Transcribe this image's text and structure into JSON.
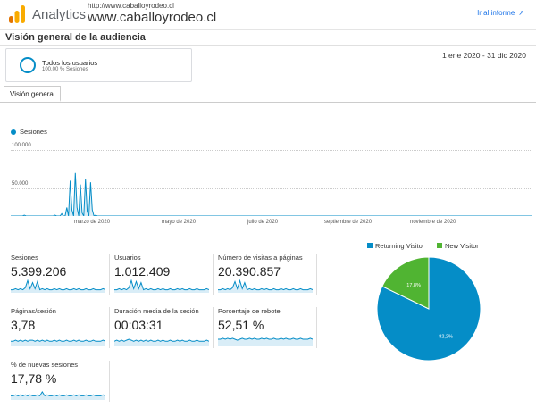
{
  "header": {
    "app_name": "Analytics",
    "property_url": "http://www.caballoyrodeo.cl",
    "property_name": "www.caballoyrodeo.cl",
    "report_link": "Ir al informe",
    "report_link_icon": "external-link-icon"
  },
  "page": {
    "title": "Visión general de la audiencia",
    "date_range": "1 ene 2020 - 31 dic 2020"
  },
  "segment": {
    "name": "Todos los usuarios",
    "percent": "100,00 % Sesiones",
    "color": "#058dc7"
  },
  "tabs": [
    {
      "label": "Visión general",
      "active": true
    }
  ],
  "chart_data": [
    {
      "type": "line",
      "title": "Sesiones",
      "series": [
        {
          "name": "Sesiones",
          "color": "#058dc7",
          "values": [
            7000,
            9000,
            11000,
            13000,
            8000,
            12000,
            10000,
            9000,
            15000,
            11000,
            8000,
            13000,
            10000,
            9000,
            12000,
            10000,
            8000,
            11000,
            9000,
            10000,
            13000,
            9000,
            11000,
            10000,
            12000,
            9000,
            15000,
            10000,
            14000,
            12000,
            17000,
            11000,
            9000,
            25000,
            14000,
            60000,
            22000,
            12000,
            70000,
            25000,
            13000,
            55000,
            18000,
            12000,
            62000,
            20000,
            14000,
            58000,
            22000,
            12000,
            15000,
            11000,
            9000,
            12000,
            10000,
            8000,
            13000,
            9000,
            11000,
            8000,
            12000,
            10000,
            7000,
            9000,
            11000,
            8000,
            10000,
            12000,
            8000,
            9000,
            11000,
            7000,
            10000,
            8000,
            12000,
            9000,
            7000,
            11000,
            8000,
            10000,
            9000,
            12000,
            7000,
            10000,
            8000,
            11000,
            9000,
            13000,
            8000,
            10000,
            12000,
            9000,
            8000,
            11000,
            10000,
            14000,
            9000,
            8000,
            12000,
            10000,
            9000,
            11000,
            7000,
            10000,
            12000,
            8000,
            9000,
            11000,
            10000,
            7000,
            13000,
            9000,
            10000,
            8000,
            12000,
            9000,
            11000,
            10000,
            8000,
            12000,
            9000,
            10000,
            8000,
            11000,
            13000,
            9000,
            10000,
            8000,
            12000,
            9000,
            7000,
            11000,
            10000,
            12000,
            8000,
            9000,
            11000,
            13000,
            8000,
            10000,
            9000,
            12000,
            10000,
            8000,
            11000,
            9000,
            12000,
            10000,
            8000,
            13000,
            9000,
            11000,
            10000,
            12000,
            8000,
            10000,
            11000,
            9000,
            14000,
            10000,
            8000,
            12000,
            9000,
            10000,
            11000,
            8000,
            12000,
            9000,
            10000,
            13000,
            9000,
            11000,
            8000,
            12000,
            10000,
            9000,
            11000,
            8000,
            10000,
            12000,
            9000,
            14000,
            10000,
            8000,
            11000,
            9000,
            12000,
            10000,
            8000,
            13000,
            9000,
            11000,
            10000,
            12000,
            8000,
            9000,
            11000,
            10000,
            8000,
            12000,
            9000,
            10000,
            11000,
            8000,
            12000,
            9000,
            7000,
            11000,
            10000,
            8000,
            12000,
            9000,
            10000,
            8000,
            11000,
            9000,
            12000,
            10000,
            8000,
            11000,
            9000,
            10000,
            8000,
            12000,
            9000,
            7000,
            10000,
            8000,
            11000,
            9000,
            10000,
            8000,
            12000,
            9000,
            7000,
            11000,
            8000,
            10000,
            9000,
            11000,
            8000,
            10000,
            7000,
            9000,
            10000,
            8000,
            11000,
            9000,
            7000,
            10000,
            8000,
            9000,
            11000,
            7000,
            10000,
            8000,
            9000,
            10000,
            7000,
            8000,
            11000,
            9000,
            7000,
            10000,
            8000,
            9000,
            7000,
            10000,
            8000,
            9000,
            7000,
            8000,
            10000,
            7000,
            9000,
            8000,
            6000,
            9000,
            7000,
            8000,
            6000,
            9000,
            7000,
            8000,
            6000,
            7000,
            9000,
            6000,
            8000,
            7000,
            5000,
            8000,
            6000,
            7000,
            5000,
            8000,
            6000,
            7000,
            5000,
            6000,
            8000,
            5000,
            7000,
            6000,
            4000,
            7000,
            5000,
            6000
          ],
          "color_fill": "#d9edf7"
        }
      ],
      "y_ticks": [
        "100.000",
        "50.000"
      ],
      "x_ticks": [
        "marzo de 2020",
        "mayo de 2020",
        "julio de 2020",
        "septiembre de 2020",
        "noviembre de 2020"
      ],
      "ylim": [
        0,
        100000
      ]
    },
    {
      "type": "pie",
      "series": [
        {
          "name": "Returning Visitor",
          "value": 82.2,
          "label": "82,2%",
          "color": "#058dc7"
        },
        {
          "name": "New Visitor",
          "value": 17.8,
          "label": "17,8%",
          "color": "#50b432"
        }
      ]
    }
  ],
  "metrics": [
    {
      "label": "Sesiones",
      "value": "5.399.206",
      "spark": [
        3,
        3,
        4,
        3,
        4,
        3,
        5,
        12,
        4,
        10,
        4,
        11,
        3,
        4,
        3,
        4,
        3,
        3,
        4,
        3,
        4,
        3,
        3,
        4,
        3,
        3,
        4,
        3,
        4,
        3,
        3,
        4,
        3,
        3,
        4,
        3,
        3,
        3,
        4,
        3
      ]
    },
    {
      "label": "Usuarios",
      "value": "1.012.409",
      "spark": [
        3,
        3,
        4,
        3,
        4,
        3,
        5,
        12,
        4,
        11,
        4,
        10,
        3,
        4,
        3,
        4,
        3,
        3,
        4,
        3,
        4,
        3,
        3,
        4,
        3,
        3,
        4,
        3,
        4,
        3,
        3,
        4,
        3,
        3,
        4,
        3,
        3,
        3,
        4,
        3
      ]
    },
    {
      "label": "Número de visitas a páginas",
      "value": "20.390.857",
      "spark": [
        3,
        3,
        4,
        3,
        4,
        3,
        5,
        11,
        4,
        12,
        4,
        10,
        3,
        4,
        3,
        4,
        3,
        3,
        4,
        3,
        4,
        3,
        3,
        4,
        3,
        3,
        4,
        3,
        4,
        3,
        3,
        4,
        3,
        3,
        4,
        3,
        3,
        3,
        4,
        3
      ]
    },
    {
      "label": "Páginas/sesión",
      "value": "3,78",
      "spark": [
        5,
        5,
        6,
        5,
        6,
        5,
        6,
        5,
        6,
        6,
        5,
        6,
        5,
        6,
        5,
        6,
        5,
        5,
        6,
        5,
        6,
        5,
        5,
        6,
        5,
        5,
        6,
        5,
        6,
        5,
        5,
        6,
        5,
        5,
        6,
        5,
        5,
        5,
        6,
        5
      ]
    },
    {
      "label": "Duración media de la sesión",
      "value": "00:03:31",
      "spark": [
        5,
        6,
        5,
        6,
        5,
        6,
        7,
        6,
        5,
        6,
        5,
        6,
        5,
        6,
        5,
        6,
        5,
        5,
        6,
        5,
        6,
        5,
        5,
        6,
        5,
        5,
        6,
        5,
        6,
        5,
        5,
        6,
        5,
        5,
        6,
        5,
        5,
        5,
        6,
        5
      ]
    },
    {
      "label": "Porcentaje de rebote",
      "value": "52,51 %",
      "spark": [
        7,
        7,
        8,
        7,
        8,
        7,
        8,
        7,
        6,
        7,
        8,
        7,
        7,
        8,
        7,
        8,
        7,
        7,
        8,
        7,
        8,
        7,
        7,
        8,
        7,
        7,
        8,
        7,
        8,
        7,
        7,
        8,
        7,
        7,
        8,
        7,
        7,
        7,
        8,
        7
      ]
    },
    {
      "label": "% de nuevas sesiones",
      "value": "17,78 %",
      "spark": [
        4,
        4,
        5,
        4,
        5,
        4,
        5,
        4,
        5,
        4,
        4,
        5,
        4,
        8,
        4,
        5,
        4,
        4,
        5,
        4,
        5,
        4,
        4,
        5,
        4,
        4,
        5,
        4,
        5,
        4,
        4,
        5,
        4,
        4,
        5,
        4,
        4,
        4,
        5,
        4
      ]
    }
  ]
}
